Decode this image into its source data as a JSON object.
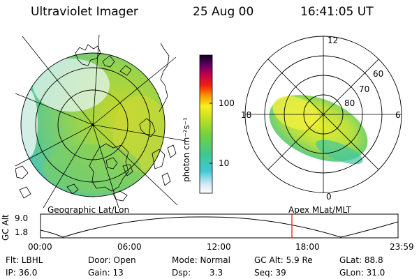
{
  "header": {
    "instrument": "Ultraviolet Imager",
    "date": "25 Aug 00",
    "time": "16:41:05 UT"
  },
  "colorbar": {
    "unit_label": "photon cm⁻²s⁻¹",
    "tick_100": "100",
    "tick_10": "10"
  },
  "left_panel": {
    "label": "Geographic Lat/Lon"
  },
  "right_panel": {
    "label": "Apex MLat/MLT",
    "mlt_labels": {
      "top": "12",
      "right": "6",
      "bottom": "0",
      "left": "18"
    },
    "lat_labels": {
      "l60": "60",
      "l70": "70",
      "l80": "80"
    }
  },
  "timeline": {
    "y_axis_label": "GC Alt",
    "y_ticks": {
      "upper": "9.0",
      "lower": "1.8"
    },
    "x_ticks": [
      "00:00",
      "06:00",
      "12:00",
      "18:00",
      "23:59"
    ],
    "marker_color": "#ff0000"
  },
  "info": {
    "filter": "Flt: LBHL",
    "ip": "IP: 36.0",
    "door": "Door: Open",
    "gain": "Gain: 13",
    "mode": "Mode: Normal",
    "dsp_label": "Dsp:",
    "dsp_value": "3.3",
    "gc_alt": "GC Alt: 5.9 Re",
    "seq": "Seq: 39",
    "glat": "GLat: 88.8",
    "glon": "GLon: 31.0"
  }
}
